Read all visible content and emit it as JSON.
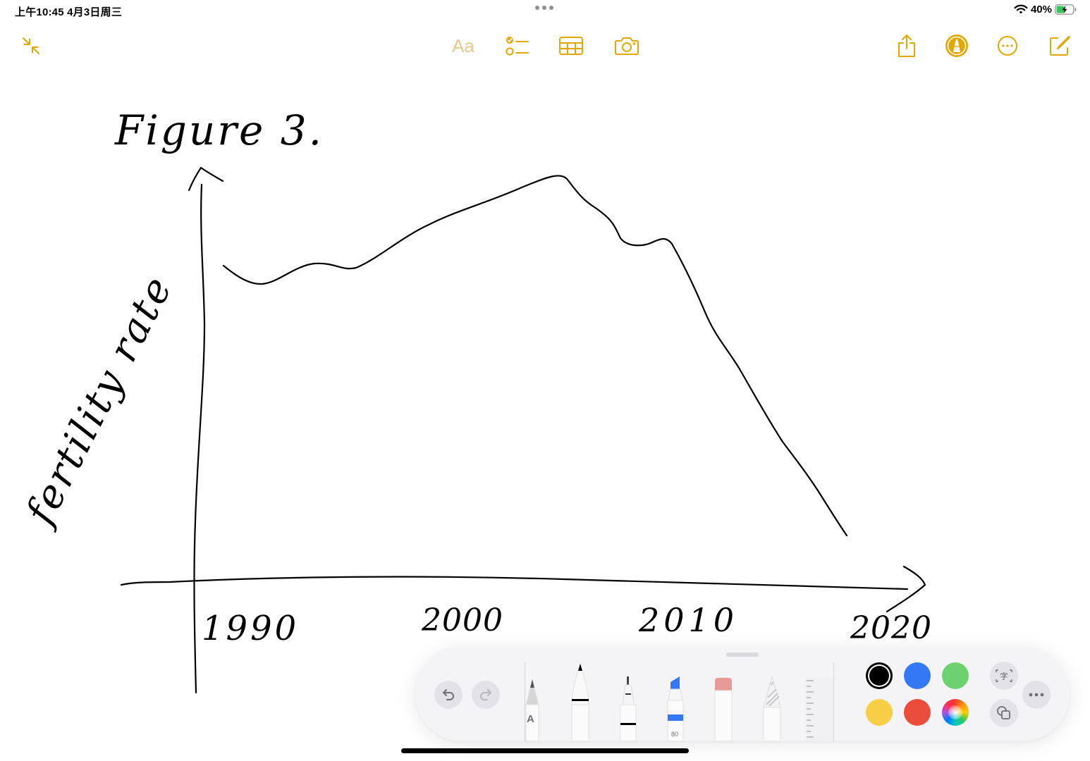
{
  "status_bar": {
    "time_date": "上午10:45   4月3日周三",
    "battery_percent": "40%",
    "battery_level": 0.4
  },
  "toolbar": {
    "format_label": "Aa",
    "accent_color": "#e0a800",
    "icons": [
      "collapse-icon",
      "checklist-icon",
      "table-icon",
      "camera-icon",
      "share-icon",
      "markup-icon",
      "more-icon",
      "compose-icon"
    ]
  },
  "drawing": {
    "title": "Figure 3.",
    "y_axis_label": "fertility rate",
    "x_tick_labels": [
      "1990",
      "2000",
      "2010",
      "2020"
    ]
  },
  "palette": {
    "tools": [
      "pencil-a-tool",
      "pen-tool",
      "fineliner-tool",
      "marker-tool",
      "eraser-tool",
      "lasso-tool",
      "ruler-tool"
    ],
    "marker_size": "80",
    "pencil_label": "A",
    "colors": [
      "#000000",
      "#3478f6",
      "#6dd16f",
      "#f7ce46",
      "#eb4d3d"
    ],
    "selected_color": "#000000"
  }
}
